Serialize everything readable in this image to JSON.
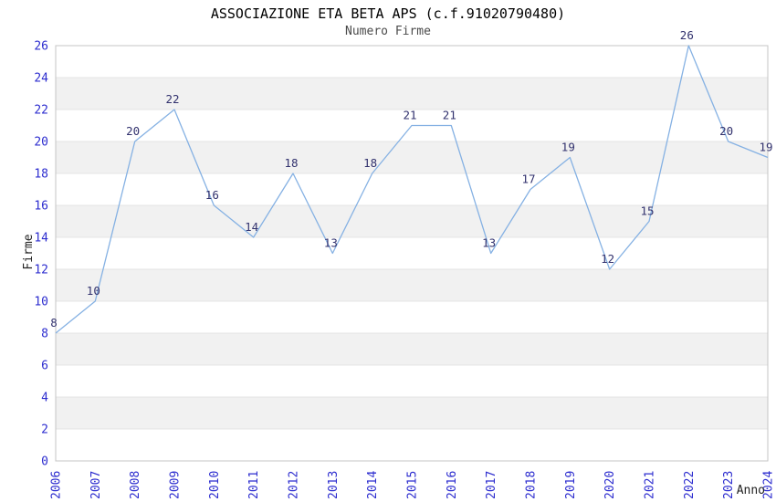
{
  "header": {
    "title": "ASSOCIAZIONE ETA BETA APS (c.f.91020790480)",
    "subtitle": "Numero Firme"
  },
  "chart_data": {
    "type": "line",
    "title": "ASSOCIAZIONE ETA BETA APS (c.f.91020790480)",
    "subtitle": "Numero Firme",
    "xlabel": "Anno",
    "ylabel": "Firme",
    "x": [
      2006,
      2007,
      2008,
      2009,
      2010,
      2011,
      2012,
      2013,
      2014,
      2015,
      2016,
      2017,
      2018,
      2019,
      2020,
      2021,
      2022,
      2023,
      2024
    ],
    "values": [
      8,
      10,
      20,
      22,
      16,
      14,
      18,
      13,
      18,
      21,
      21,
      13,
      17,
      19,
      12,
      15,
      26,
      20,
      19
    ],
    "ylim": [
      0,
      26
    ],
    "ytick_step": 2,
    "grid": "horizontal-bands",
    "legend": "none",
    "colors": {
      "line": "#85b1e3",
      "tick_labels": "#2d2dcf",
      "point_labels": "#32326e",
      "band": "#f1f1f1",
      "gridline": "#e4e4e4",
      "border": "#c4c4c4",
      "title": "#000000",
      "subtitle": "#4a4a4a",
      "axis_titles": "#222222"
    }
  }
}
